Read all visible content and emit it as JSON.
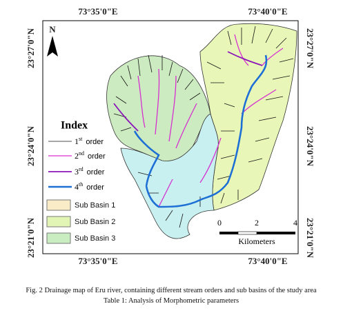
{
  "map": {
    "top_labels": [
      "73°35'0\"E",
      "73°40'0\"E"
    ],
    "bottom_labels": [
      "73°35'0\"E",
      "73°40'0\"E"
    ],
    "left_labels": [
      "23°27'0\"N",
      "23°24'0\"N",
      "23°21'0\"N"
    ],
    "right_labels": [
      "23°27'0\"N",
      "23°24'0\"N",
      "23°21'0\"N"
    ],
    "north": "N",
    "legend": {
      "title": "Index",
      "orders": [
        {
          "num": "1",
          "sup": "st",
          "word": "order"
        },
        {
          "num": "2",
          "sup": "nd",
          "word": "order"
        },
        {
          "num": "3",
          "sup": "rd",
          "word": "order"
        },
        {
          "num": "4",
          "sup": "th",
          "word": "order"
        }
      ],
      "basins": [
        "Sub Basin 1",
        "Sub Basin 2",
        "Sub Basin 3"
      ]
    },
    "scale": {
      "ticks": [
        "0",
        "2",
        "4"
      ],
      "unit": "Kilometers"
    }
  },
  "caption": {
    "figure": "Fig. 2 Drainage map of Eru river, containing different stream orders and sub basins of the study area",
    "table": "Table 1: Analysis of Morphometric parameters"
  }
}
